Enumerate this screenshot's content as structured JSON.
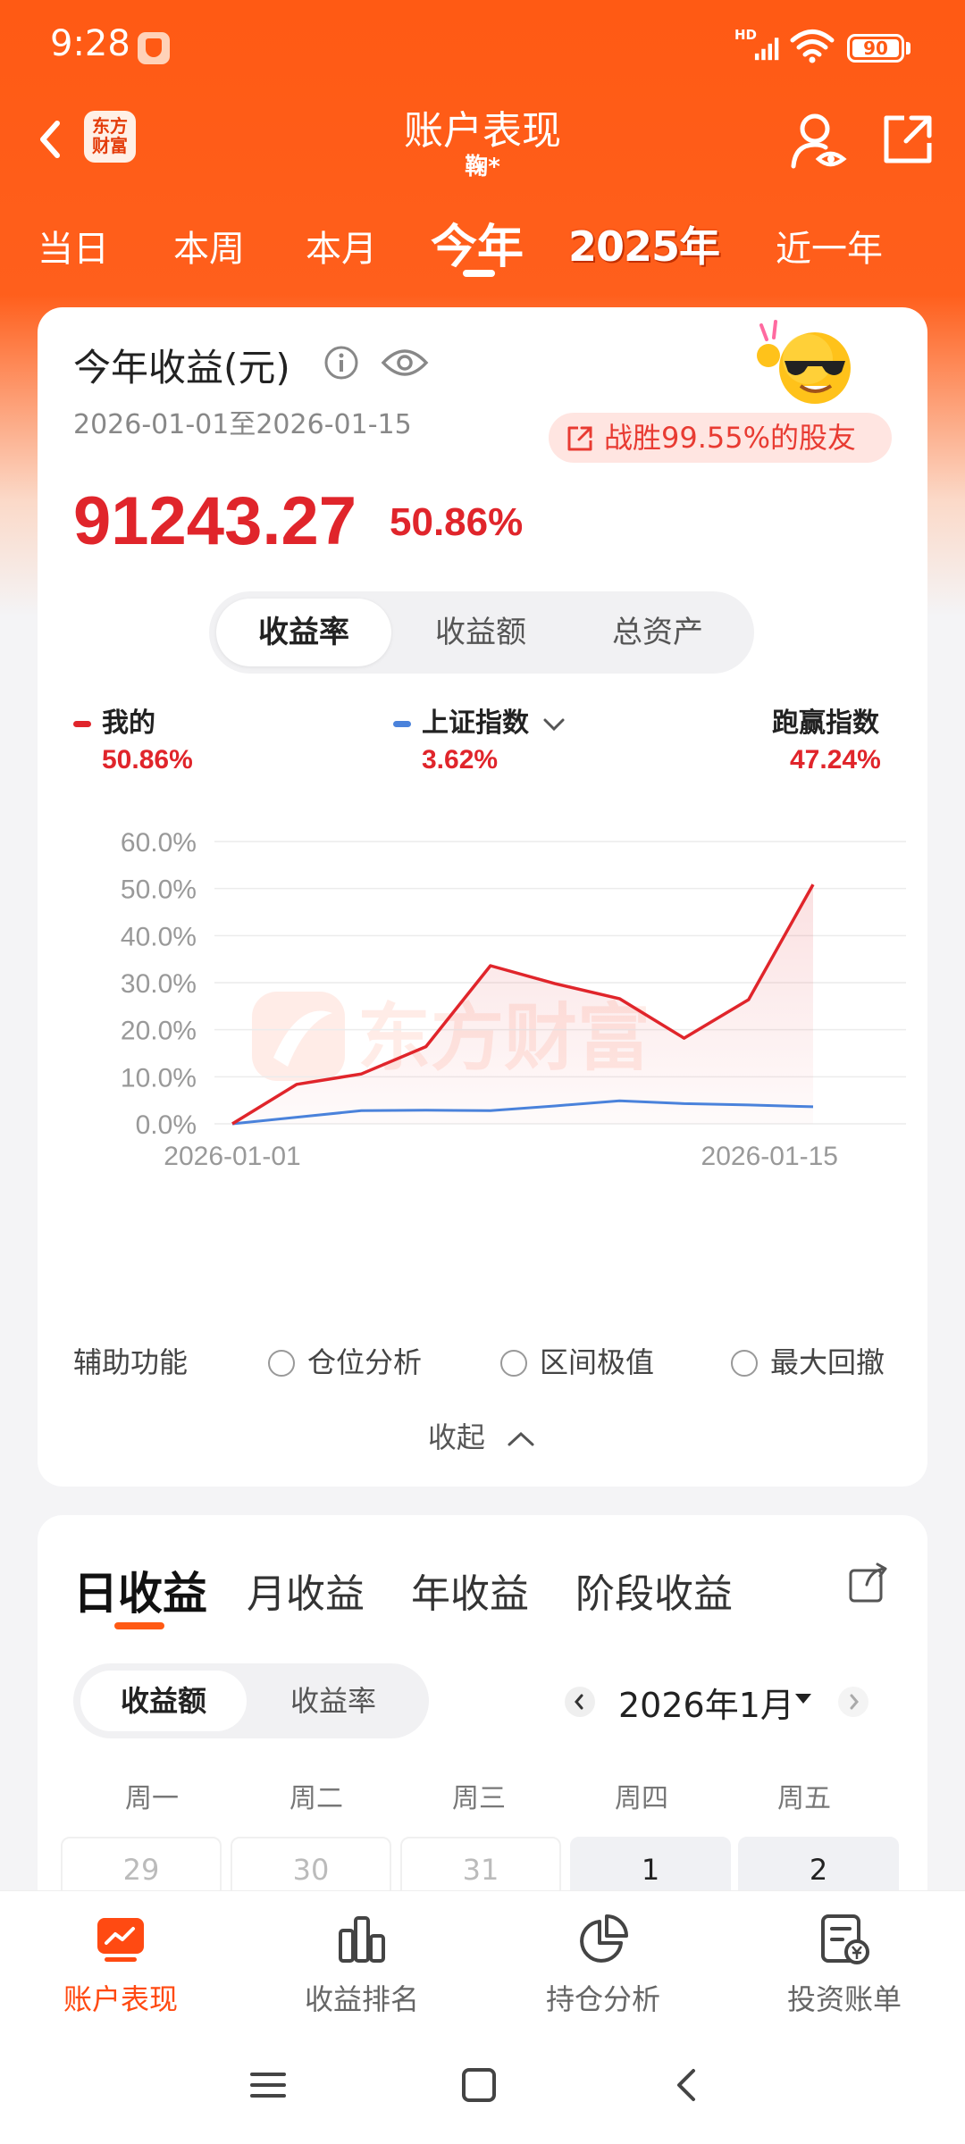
{
  "status_bar": {
    "time": "9:28",
    "network": "HD",
    "battery": "90"
  },
  "header": {
    "title": "账户表现",
    "subtitle": "鞠*",
    "logo_text_line1": "东方",
    "logo_text_line2": "财富"
  },
  "period_tabs": {
    "items": [
      "当日",
      "本周",
      "本月",
      "今年",
      "2025年",
      "近一年"
    ],
    "active": "今年"
  },
  "income": {
    "title": "今年收益(元)",
    "date_range": "2026-01-01至2026-01-15",
    "beat_text": "战胜99.55%的股友",
    "value": "91243.27",
    "pct": "50.86%"
  },
  "metric_tabs": {
    "items": [
      "收益率",
      "收益额",
      "总资产"
    ],
    "active": "收益率"
  },
  "legend": {
    "mine_label": "我的",
    "mine_value": "50.86%",
    "index_label": "上证指数",
    "index_value": "3.62%",
    "beat_label": "跑赢指数",
    "beat_value": "47.24%"
  },
  "colors": {
    "accent": "#ff5a14",
    "mine": "#e0252b",
    "index": "#4a82db",
    "beat_bg": "#ffe5e1"
  },
  "chart_data": {
    "type": "line",
    "x_start": "2026-01-01",
    "x_end": "2026-01-15",
    "xtick_labels": [
      "2026-01-01",
      "2026-01-15"
    ],
    "ytick_labels": [
      "60.0%",
      "50.0%",
      "40.0%",
      "30.0%",
      "20.0%",
      "10.0%",
      "0.0%"
    ],
    "ylim": [
      0,
      60
    ],
    "series": [
      {
        "name": "我的",
        "values": [
          0,
          8.4,
          10.6,
          16.4,
          33.6,
          29.8,
          26.6,
          18.2,
          26.4,
          50.86
        ]
      },
      {
        "name": "上证指数",
        "values": [
          0,
          1.4,
          2.8,
          2.9,
          2.8,
          3.8,
          4.9,
          4.3,
          4.0,
          3.62
        ]
      }
    ],
    "watermark": "东方财富",
    "grid": true
  },
  "aux": {
    "label": "辅助功能",
    "options": [
      "仓位分析",
      "区间极值",
      "最大回撤"
    ],
    "collapse": "收起"
  },
  "daily": {
    "tabs": [
      "日收益",
      "月收益",
      "年收益",
      "阶段收益"
    ],
    "active_tab": "日收益",
    "seg": [
      "收益额",
      "收益率"
    ],
    "seg_active": "收益额",
    "month": "2026年1月",
    "weekdays": [
      "周一",
      "周二",
      "周三",
      "周四",
      "周五"
    ],
    "first_row": [
      "29",
      "30",
      "31",
      "1",
      "2"
    ]
  },
  "bottom_nav": {
    "items": [
      "账户表现",
      "收益排名",
      "持仓分析",
      "投资账单"
    ],
    "active": "账户表现"
  }
}
